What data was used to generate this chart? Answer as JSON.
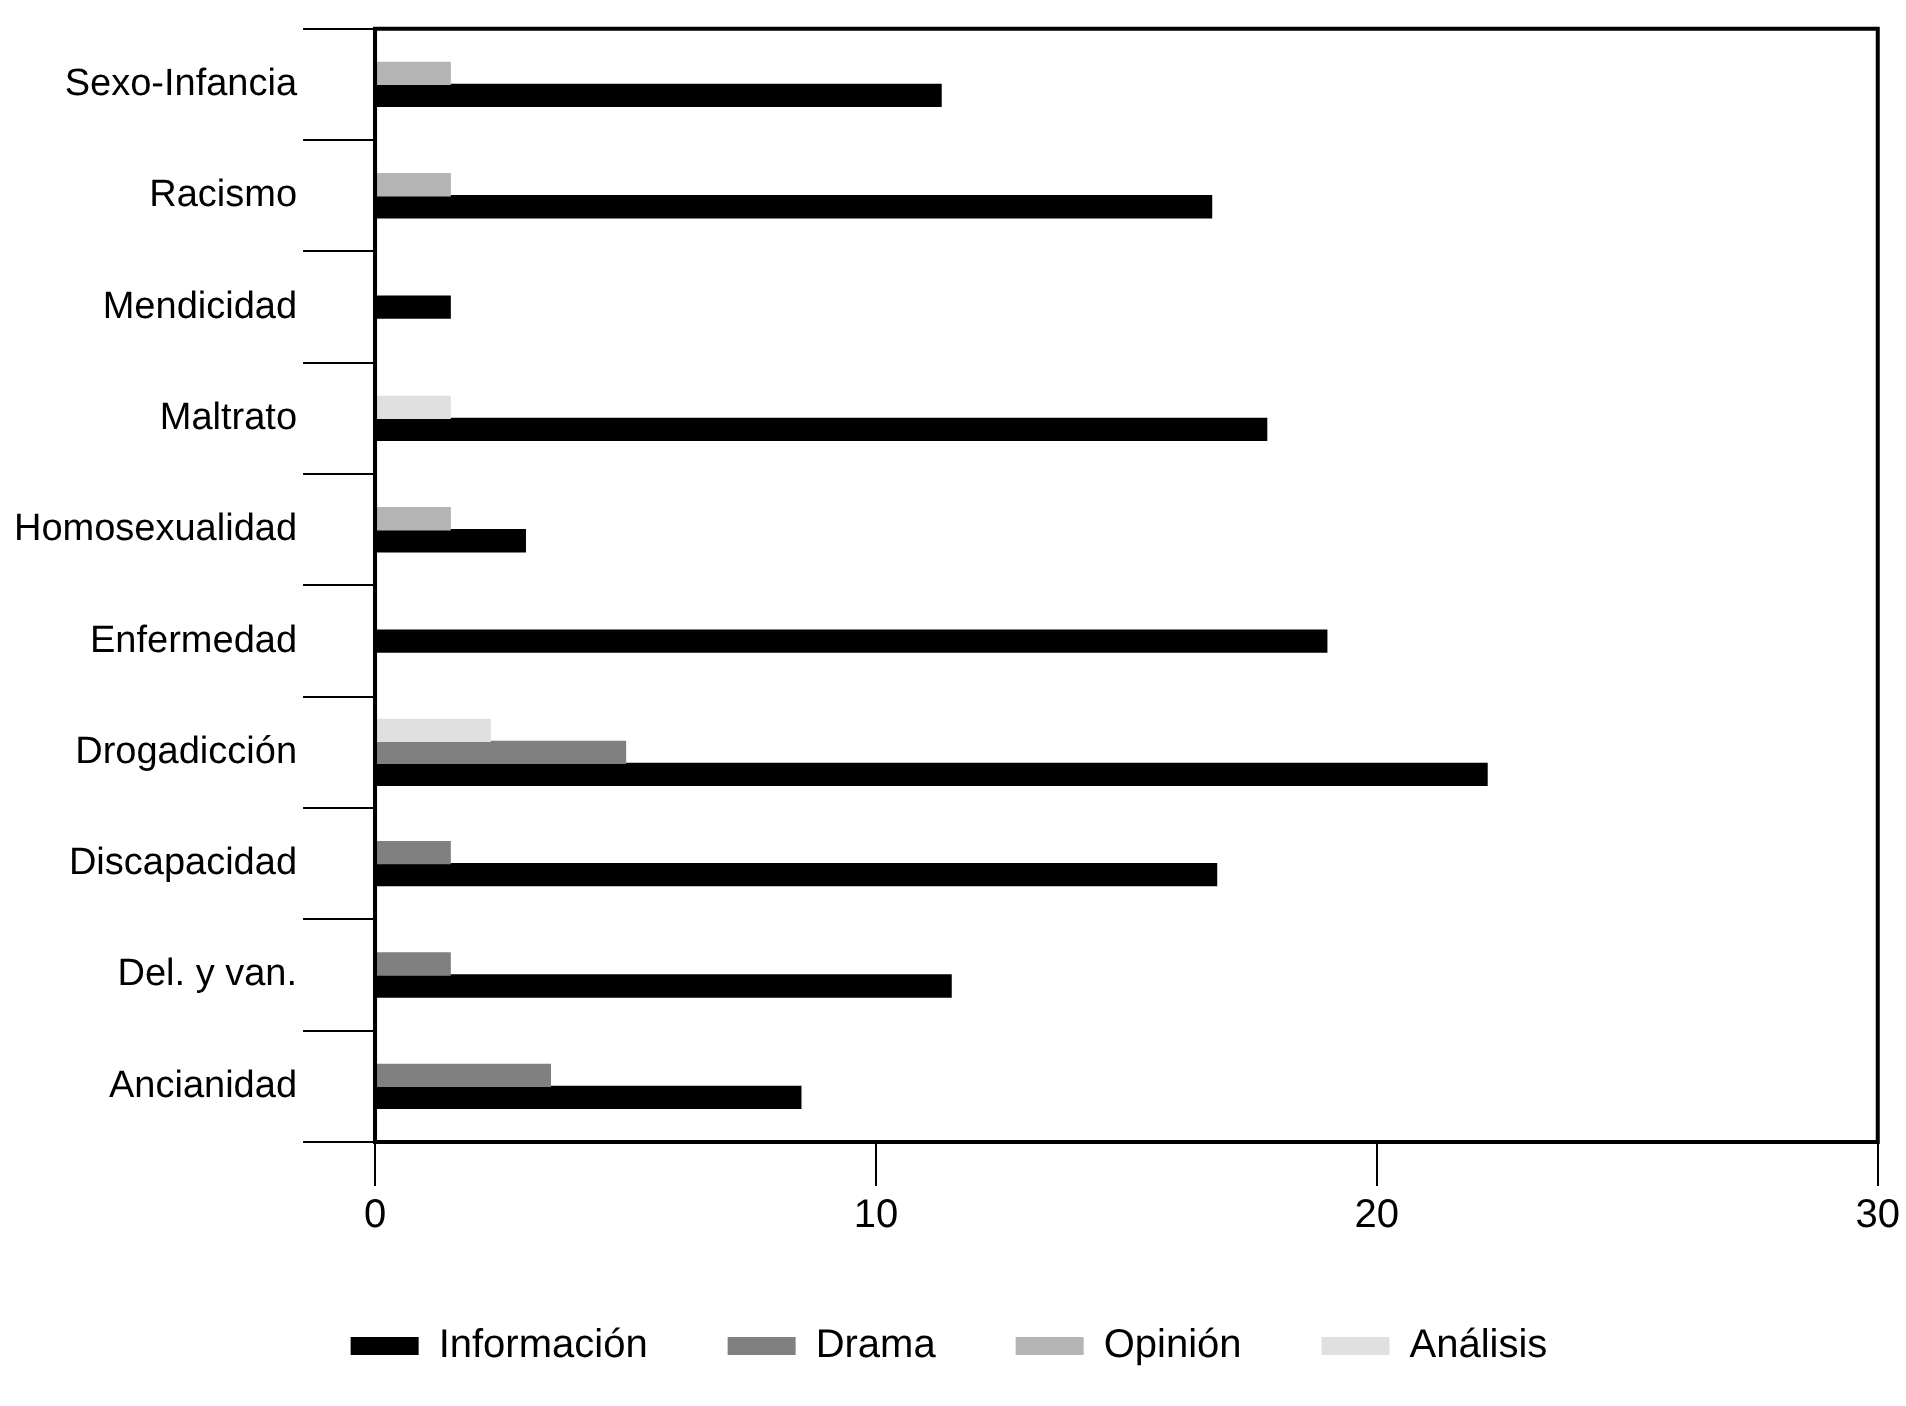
{
  "chart_data": {
    "type": "bar",
    "orientation": "horizontal",
    "categories": [
      "Sexo-Infancia",
      "Racismo",
      "Mendicidad",
      "Maltrato",
      "Homosexualidad",
      "Enfermedad",
      "Drogadicción",
      "Discapacidad",
      "Del. y van.",
      "Ancianidad"
    ],
    "series": [
      {
        "name": "Información",
        "color": "#000000",
        "values": [
          11.3,
          16.7,
          1.5,
          17.8,
          3.0,
          19.0,
          22.2,
          16.8,
          11.5,
          8.5
        ]
      },
      {
        "name": "Drama",
        "color": "#808080",
        "values": [
          null,
          null,
          null,
          null,
          null,
          null,
          5.0,
          1.5,
          1.5,
          3.5
        ]
      },
      {
        "name": "Opinión",
        "color": "#b4b4b4",
        "values": [
          1.5,
          1.5,
          null,
          null,
          1.5,
          null,
          null,
          null,
          null,
          null
        ]
      },
      {
        "name": "Análisis",
        "color": "#e0e0e0",
        "values": [
          null,
          null,
          null,
          1.5,
          null,
          null,
          2.3,
          null,
          null,
          null
        ]
      }
    ],
    "xlim": [
      0,
      30
    ],
    "xticks": [
      0,
      10,
      20,
      30
    ],
    "grid": false,
    "legend": "bottom"
  }
}
